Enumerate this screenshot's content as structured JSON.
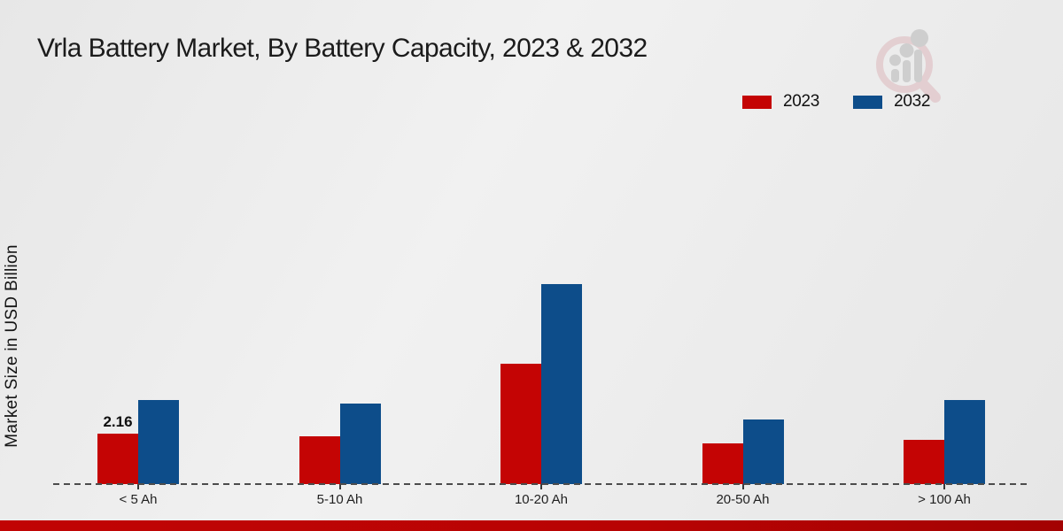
{
  "header": {
    "title": "Vrla Battery Market, By Battery Capacity, 2023 & 2032"
  },
  "icons": {
    "logo_icon": "magnifier-bar-chart-icon"
  },
  "colors": {
    "series_2023": "#c40404",
    "series_2032": "#0d4d8a",
    "bottom_bar": "#b80303",
    "background": "#ededed",
    "axis_dash": "#4c4c4c"
  },
  "chart_data": {
    "type": "bar",
    "title": "Vrla Battery Market, By Battery Capacity, 2023 & 2032",
    "categories": [
      "< 5 Ah",
      "5-10 Ah",
      "10-20 Ah",
      "20-50 Ah",
      "> 100 Ah"
    ],
    "series": [
      {
        "name": "2023",
        "color": "#c40404",
        "values": [
          2.16,
          2.05,
          5.15,
          1.75,
          1.9
        ],
        "data_labels": [
          "2.16",
          "",
          "",
          "",
          ""
        ]
      },
      {
        "name": "2032",
        "color": "#0d4d8a",
        "values": [
          3.6,
          3.45,
          8.55,
          2.77,
          3.6
        ],
        "data_labels": [
          "",
          "",
          "",
          "",
          ""
        ]
      }
    ],
    "xlabel": "",
    "ylabel": "Market Size in USD Billion",
    "ylim": [
      0,
      10
    ],
    "grid": false,
    "legend_position": "top-right",
    "x_axis_style": "dashed-line",
    "y_axis_ticks_visible": false
  }
}
